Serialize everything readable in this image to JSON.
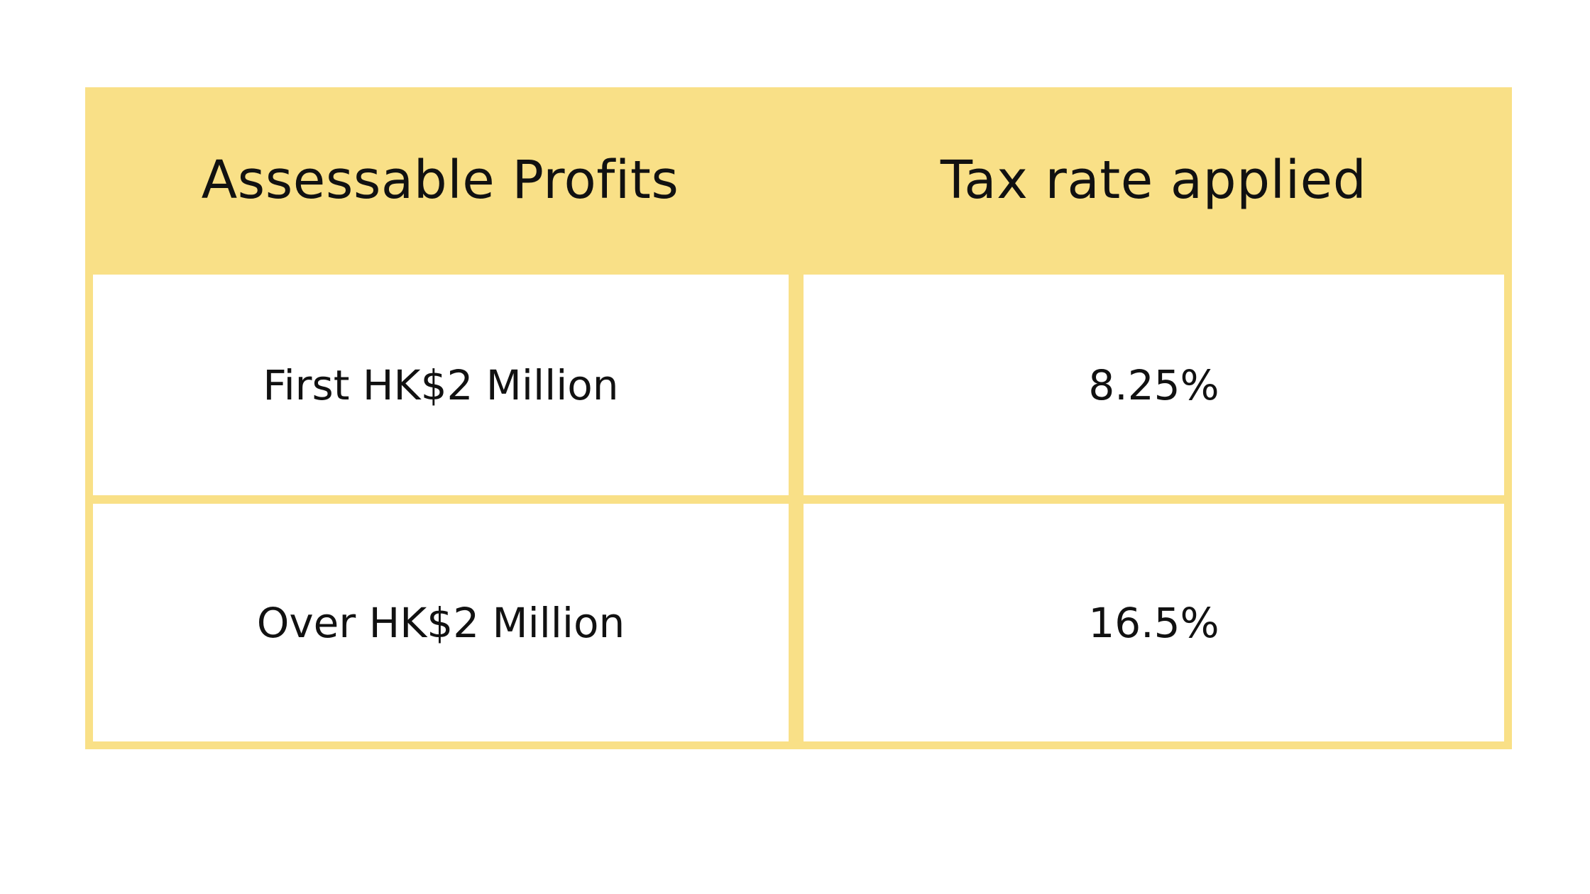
{
  "colors": {
    "header_background": "#f9e087",
    "border": "#f9e087",
    "cell_background": "#ffffff",
    "text": "#111111"
  },
  "table": {
    "headers": [
      "Assessable Profits",
      "Tax rate applied"
    ],
    "rows": [
      [
        "First HK$2 Million",
        "8.25%"
      ],
      [
        "Over HK$2 Million",
        "16.5%"
      ]
    ]
  }
}
